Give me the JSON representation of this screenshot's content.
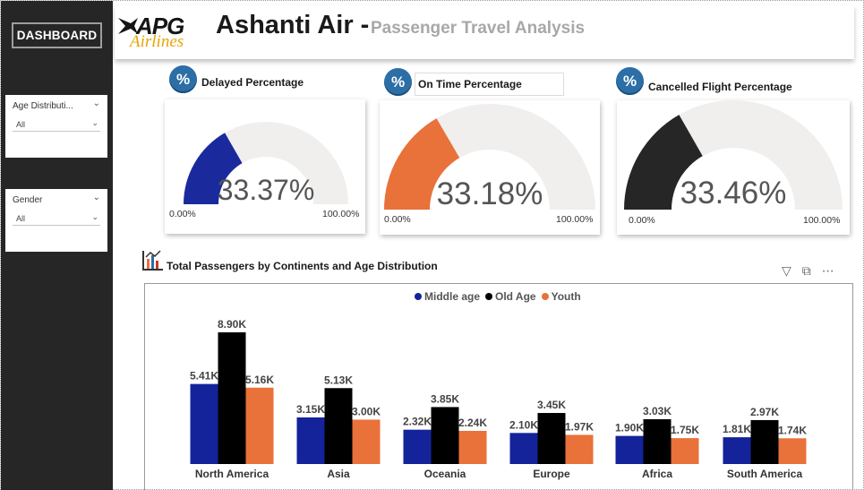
{
  "header": {
    "logo_text": "APG",
    "logo_sub": "Airlines",
    "title": "Ashanti Air -",
    "subtitle": "Passenger Travel Analysis"
  },
  "sidebar": {
    "dashboard_label": "DASHBOARD",
    "slicers": [
      {
        "title": "Age Distributi...",
        "value": "All"
      },
      {
        "title": "Gender",
        "value": "All"
      }
    ]
  },
  "kpis": [
    {
      "label": "Delayed Percentage",
      "value": "33.37%",
      "min": "0.00%",
      "max": "100.00%",
      "fraction": 0.3337,
      "color": "#1a2a9c",
      "icon": "percent-icon"
    },
    {
      "label": "On Time Percentage",
      "value": "33.18%",
      "min": "0.00%",
      "max": "100.00%",
      "fraction": 0.3318,
      "color": "#e9713a",
      "icon": "percent-icon"
    },
    {
      "label": "Cancelled Flight Percentage",
      "value": "33.46%",
      "min": "0.00%",
      "max": "100.00%",
      "fraction": 0.3346,
      "color": "#262626",
      "icon": "percent-icon"
    }
  ],
  "chart_title": "Total Passengers by Continents and Age Distribution",
  "chart_data": {
    "type": "bar",
    "title": "Total Passengers by Continents and Age Distribution",
    "categories": [
      "North America",
      "Asia",
      "Oceania",
      "Europe",
      "Africa",
      "South America"
    ],
    "series": [
      {
        "name": "Middle age",
        "color": "#14239a",
        "values": [
          5410,
          3150,
          2320,
          2100,
          1900,
          1810
        ],
        "labels": [
          "5.41K",
          "3.15K",
          "2.32K",
          "2.10K",
          "1.90K",
          "1.81K"
        ]
      },
      {
        "name": "Old Age",
        "color": "#000000",
        "values": [
          8900,
          5130,
          3850,
          3450,
          3030,
          2970
        ],
        "labels": [
          "8.90K",
          "5.13K",
          "3.85K",
          "3.45K",
          "3.03K",
          "2.97K"
        ]
      },
      {
        "name": "Youth",
        "color": "#e9713a",
        "values": [
          5160,
          3000,
          2240,
          1970,
          1750,
          1740
        ],
        "labels": [
          "5.16K",
          "3.00K",
          "2.24K",
          "1.97K",
          "1.75K",
          "1.74K"
        ]
      }
    ],
    "legend_position": "top-center",
    "grid": false,
    "xlabel": "",
    "ylabel": ""
  },
  "colors": {
    "sidebar": "#262626",
    "gauge_track": "#f0efee",
    "icon_blue": "#2c6ea6"
  }
}
